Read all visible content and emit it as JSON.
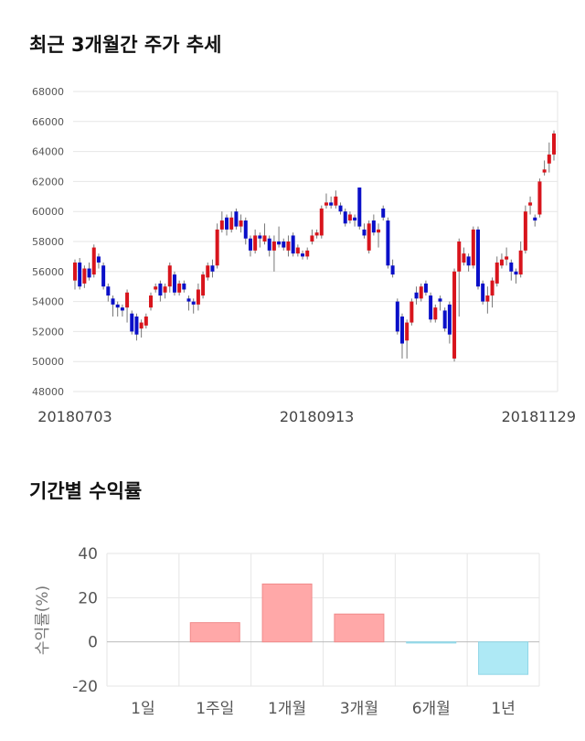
{
  "chart_data": [
    {
      "type": "candlestick",
      "title": "최근 3개월간 주가 추세",
      "categories": [
        "20180703",
        null,
        null,
        null,
        null,
        null,
        null,
        null,
        null,
        null,
        null,
        null,
        null,
        null,
        null,
        null,
        null,
        null,
        null,
        null,
        null,
        null,
        null,
        null,
        null,
        null,
        null,
        null,
        null,
        null,
        null,
        null,
        null,
        null,
        null,
        null,
        null,
        null,
        null,
        null,
        null,
        null,
        null,
        null,
        null,
        null,
        null,
        null,
        null,
        null,
        null,
        "20180913",
        null,
        null,
        null,
        null,
        null,
        null,
        null,
        null,
        null,
        null,
        null,
        null,
        null,
        null,
        null,
        null,
        null,
        null,
        null,
        null,
        null,
        null,
        null,
        null,
        null,
        null,
        null,
        null,
        null,
        null,
        null,
        null,
        null,
        null,
        null,
        null,
        null,
        null,
        null,
        null,
        null,
        null,
        null,
        null,
        null,
        null,
        null,
        null,
        null,
        "20181129"
      ],
      "open": [
        55400,
        56600,
        55200,
        56200,
        55800,
        57000,
        56400,
        55000,
        54200,
        53800,
        53600,
        53600,
        53200,
        53000,
        52200,
        52400,
        53600,
        54800,
        55200,
        54600,
        55000,
        55800,
        54600,
        55200,
        54200,
        54000,
        53800,
        54400,
        55600,
        56400,
        56400,
        58800,
        59600,
        58800,
        60000,
        59000,
        59400,
        58200,
        57400,
        58400,
        58000,
        58200,
        57400,
        58000,
        58000,
        57400,
        58400,
        57200,
        57200,
        57000,
        58000,
        58400,
        58400,
        60400,
        60600,
        60400,
        60400,
        60000,
        59400,
        59600,
        61600,
        58800,
        57400,
        59400,
        58600,
        60200,
        59400,
        56400,
        54000,
        53000,
        51400,
        52600,
        54600,
        54200,
        55200,
        54400,
        52800,
        54200,
        53400,
        53800,
        50200,
        56000,
        56600,
        57000,
        56400,
        58800,
        55200,
        54000,
        54400,
        55200,
        56400,
        56800,
        56600,
        56000,
        55800,
        57400,
        60400,
        59600,
        59800,
        62600,
        63200,
        63800
      ],
      "high": [
        56800,
        56900,
        56400,
        56600,
        57800,
        57200,
        56600,
        55200,
        54400,
        54000,
        53800,
        54800,
        53400,
        53200,
        52800,
        53200,
        54600,
        55200,
        55400,
        55200,
        56600,
        56000,
        55400,
        55400,
        54400,
        54200,
        55200,
        56000,
        56600,
        56800,
        59200,
        60000,
        59800,
        60000,
        60200,
        59800,
        59600,
        58400,
        58800,
        58600,
        59200,
        58400,
        58400,
        59000,
        58200,
        58400,
        58600,
        57800,
        57400,
        57600,
        58800,
        58800,
        60400,
        61200,
        61000,
        61400,
        60600,
        60200,
        60000,
        59800,
        61600,
        59200,
        59400,
        59800,
        59200,
        60400,
        59600,
        56800,
        54200,
        53200,
        52800,
        54200,
        55000,
        55200,
        55400,
        54600,
        53800,
        54400,
        53600,
        54000,
        56200,
        58200,
        57600,
        57200,
        59000,
        59000,
        55400,
        55000,
        55600,
        57000,
        57200,
        57600,
        56800,
        56200,
        58000,
        60400,
        61000,
        59800,
        62200,
        63400,
        64600,
        65400
      ],
      "low": [
        54800,
        54800,
        54900,
        55400,
        55600,
        56200,
        54800,
        54000,
        53000,
        53000,
        53000,
        52600,
        51800,
        51400,
        51600,
        52200,
        53400,
        54600,
        54000,
        54200,
        54600,
        54400,
        54400,
        54600,
        53400,
        53200,
        53400,
        54200,
        55400,
        55600,
        56200,
        58600,
        58400,
        58600,
        58800,
        58600,
        57800,
        57000,
        57200,
        57600,
        57800,
        57000,
        56000,
        57600,
        57400,
        57000,
        57000,
        57000,
        56800,
        56800,
        57800,
        58200,
        58200,
        60200,
        60200,
        60200,
        59800,
        59000,
        59200,
        59000,
        58800,
        58200,
        57200,
        58400,
        57600,
        59400,
        56200,
        55600,
        51800,
        50200,
        50200,
        52400,
        53800,
        54000,
        54400,
        52600,
        52600,
        53400,
        52000,
        51200,
        50000,
        53000,
        56400,
        56000,
        56200,
        54800,
        53800,
        53200,
        53600,
        55000,
        56200,
        56400,
        55400,
        55200,
        55600,
        57200,
        59800,
        59000,
        59600,
        62400,
        62600,
        63400
      ],
      "close": [
        56600,
        55000,
        56200,
        55600,
        57600,
        56600,
        55000,
        54400,
        53800,
        53600,
        53400,
        54600,
        52000,
        51800,
        52600,
        53000,
        54400,
        55000,
        54400,
        55000,
        56400,
        54600,
        55200,
        54800,
        54000,
        53800,
        54800,
        55800,
        56400,
        56000,
        58800,
        59400,
        58800,
        59600,
        59000,
        59400,
        58200,
        57400,
        58400,
        58200,
        58400,
        57400,
        58000,
        57800,
        57600,
        58000,
        57200,
        57600,
        57000,
        57400,
        58400,
        58600,
        60200,
        60600,
        60400,
        61000,
        60000,
        59200,
        59800,
        59400,
        59000,
        58400,
        59200,
        58600,
        58800,
        59600,
        56400,
        55800,
        52000,
        51200,
        52600,
        54000,
        54200,
        55000,
        54600,
        52800,
        53600,
        54000,
        52200,
        51800,
        56000,
        58000,
        57200,
        56400,
        58800,
        55000,
        54000,
        54400,
        55400,
        56600,
        56800,
        57000,
        56000,
        55800,
        57400,
        60000,
        60600,
        59400,
        62000,
        62800,
        63800,
        65200
      ],
      "up_color": "#d8141c",
      "down_color": "#0a0fc8",
      "ylim": [
        48000,
        68000
      ],
      "yticks": [
        48000,
        50000,
        52000,
        54000,
        56000,
        58000,
        60000,
        62000,
        64000,
        66000,
        68000
      ],
      "grid": true
    },
    {
      "type": "bar",
      "title": "기간별 수익률",
      "ylabel": "수익률(%)",
      "categories": [
        "1일",
        "1주일",
        "1개월",
        "3개월",
        "6개월",
        "1년"
      ],
      "values": [
        0,
        8.7,
        26.2,
        12.6,
        -0.5,
        -14.7
      ],
      "positive_color": "#ffa8a8",
      "negative_color": "#aee9f5",
      "ylim": [
        -20,
        40
      ],
      "yticks": [
        -20,
        0,
        20,
        40
      ],
      "grid": true
    }
  ]
}
